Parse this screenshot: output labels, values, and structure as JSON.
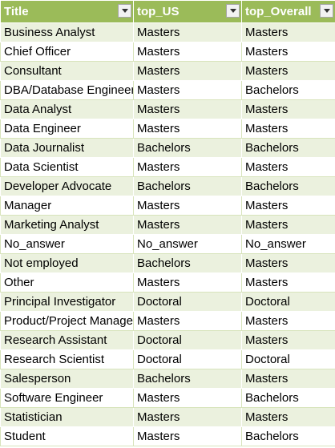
{
  "table": {
    "headers": [
      "Title",
      "top_US",
      "top_Overall"
    ],
    "header_icons": [
      "filter-dropdown-icon",
      "filter-dropdown-icon",
      "filter-dropdown-icon"
    ],
    "colors": {
      "header_bg": "#9bbb59",
      "band_bg": "#ebf1de",
      "header_text": "#ffffff"
    },
    "rows": [
      [
        "Business Analyst",
        "Masters",
        "Masters"
      ],
      [
        "Chief Officer",
        "Masters",
        "Masters"
      ],
      [
        "Consultant",
        "Masters",
        "Masters"
      ],
      [
        "DBA/Database Engineer",
        "Masters",
        "Bachelors"
      ],
      [
        "Data Analyst",
        "Masters",
        "Masters"
      ],
      [
        "Data Engineer",
        "Masters",
        "Masters"
      ],
      [
        "Data Journalist",
        "Bachelors",
        "Bachelors"
      ],
      [
        "Data Scientist",
        "Masters",
        "Masters"
      ],
      [
        "Developer Advocate",
        "Bachelors",
        "Bachelors"
      ],
      [
        "Manager",
        "Masters",
        "Masters"
      ],
      [
        "Marketing Analyst",
        "Masters",
        "Masters"
      ],
      [
        "No_answer",
        "No_answer",
        "No_answer"
      ],
      [
        "Not employed",
        "Bachelors",
        "Masters"
      ],
      [
        "Other",
        "Masters",
        "Masters"
      ],
      [
        "Principal Investigator",
        "Doctoral",
        "Doctoral"
      ],
      [
        "Product/Project Manager",
        "Masters",
        "Masters"
      ],
      [
        "Research Assistant",
        "Doctoral",
        "Masters"
      ],
      [
        "Research Scientist",
        "Doctoral",
        "Doctoral"
      ],
      [
        "Salesperson",
        "Bachelors",
        "Masters"
      ],
      [
        "Software Engineer",
        "Masters",
        "Bachelors"
      ],
      [
        "Statistician",
        "Masters",
        "Masters"
      ],
      [
        "Student",
        "Masters",
        "Bachelors"
      ]
    ]
  }
}
